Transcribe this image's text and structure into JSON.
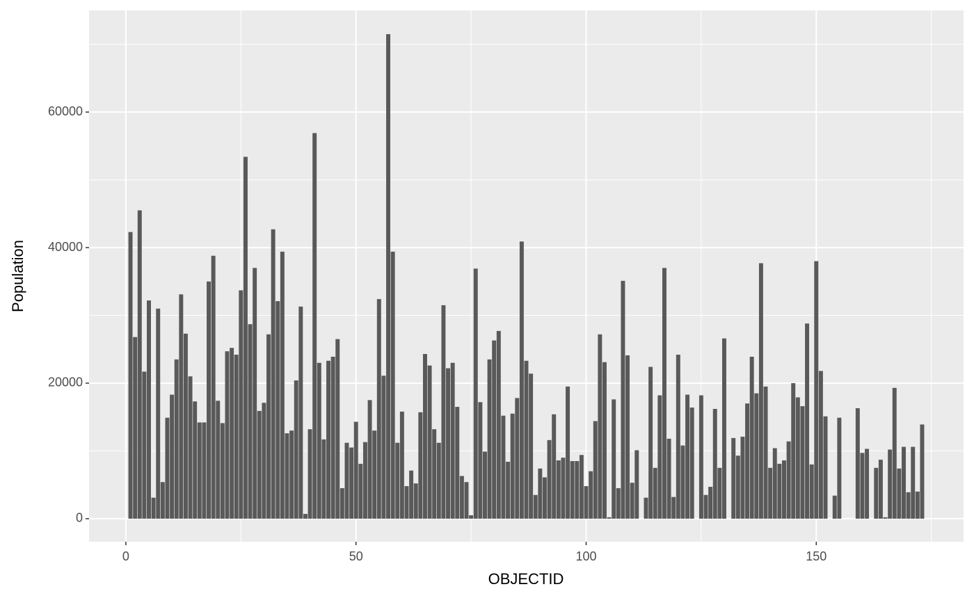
{
  "chart_data": {
    "type": "bar",
    "x_label": "OBJECTID",
    "y_label": "Population",
    "x": [
      1,
      2,
      3,
      4,
      5,
      6,
      7,
      8,
      9,
      10,
      11,
      12,
      13,
      14,
      15,
      16,
      17,
      18,
      19,
      20,
      21,
      22,
      23,
      24,
      25,
      26,
      27,
      28,
      29,
      30,
      31,
      32,
      33,
      34,
      35,
      36,
      37,
      38,
      39,
      40,
      41,
      42,
      43,
      44,
      45,
      46,
      47,
      48,
      49,
      50,
      51,
      52,
      53,
      54,
      55,
      56,
      57,
      58,
      59,
      60,
      61,
      62,
      63,
      64,
      65,
      66,
      67,
      68,
      69,
      70,
      71,
      72,
      73,
      74,
      75,
      76,
      77,
      78,
      79,
      80,
      81,
      82,
      83,
      84,
      85,
      86,
      87,
      88,
      89,
      90,
      91,
      92,
      93,
      94,
      95,
      96,
      97,
      98,
      99,
      100,
      101,
      102,
      103,
      104,
      105,
      106,
      107,
      108,
      109,
      110,
      111,
      112,
      113,
      114,
      115,
      116,
      117,
      118,
      119,
      120,
      121,
      122,
      123,
      124,
      125,
      126,
      127,
      128,
      129,
      130,
      131,
      132,
      133,
      134,
      135,
      136,
      137,
      138,
      139,
      140,
      141,
      142,
      143,
      144,
      145,
      146,
      147,
      148,
      149,
      150,
      151,
      152,
      153,
      154,
      155,
      156,
      157,
      158,
      159,
      160,
      161,
      162,
      163,
      164,
      165,
      166,
      167,
      168,
      169,
      170,
      171,
      172,
      173
    ],
    "values": [
      42300,
      26800,
      45500,
      21700,
      32200,
      3100,
      31000,
      5400,
      14900,
      18300,
      23500,
      33100,
      27300,
      21000,
      17300,
      14200,
      14200,
      35000,
      38800,
      17400,
      14100,
      24700,
      25200,
      24200,
      33700,
      53400,
      28700,
      37000,
      15900,
      17100,
      27200,
      42700,
      32100,
      39400,
      12600,
      13000,
      20400,
      31300,
      700,
      13200,
      56900,
      23000,
      11700,
      23300,
      23900,
      26500,
      4500,
      11200,
      10500,
      14300,
      8100,
      11300,
      17500,
      13000,
      32400,
      21100,
      71500,
      39400,
      11200,
      15800,
      4800,
      7100,
      5200,
      15700,
      24300,
      22600,
      13200,
      11200,
      31500,
      22200,
      23000,
      16500,
      6300,
      5400,
      500,
      36900,
      17200,
      9900,
      23500,
      26300,
      27700,
      15200,
      8400,
      15500,
      17800,
      40900,
      23300,
      21400,
      3500,
      7400,
      6100,
      11600,
      15400,
      8600,
      9000,
      19500,
      8500,
      8500,
      9400,
      4800,
      7000,
      14400,
      27200,
      23100,
      200,
      17600,
      4500,
      35100,
      24100,
      5300,
      10100,
      null,
      3100,
      22400,
      7500,
      18200,
      37000,
      11800,
      3200,
      24200,
      10800,
      18300,
      16400,
      null,
      18200,
      3500,
      4700,
      16200,
      7500,
      26600,
      null,
      11900,
      9300,
      12100,
      17000,
      23900,
      18500,
      37700,
      19500,
      7500,
      10400,
      8100,
      8600,
      11400,
      20000,
      17900,
      16600,
      28800,
      8000,
      38000,
      21800,
      15100,
      null,
      3400,
      14900,
      null,
      null,
      null,
      16300,
      9700,
      10300,
      null,
      7500,
      8700,
      200,
      10200,
      19300,
      7400,
      10600,
      3900,
      10600,
      4000,
      13900
    ],
    "color": "#595959",
    "xlim": [
      -8,
      182
    ],
    "xticks": [
      0,
      50,
      100,
      150
    ],
    "x_minor_breaks": [
      25,
      75,
      125,
      175
    ],
    "ylim": [
      -3400,
      75000
    ],
    "yticks": [
      0,
      20000,
      40000,
      60000
    ],
    "y_minor_breaks": [
      10000,
      30000,
      50000,
      70000
    ],
    "grid": true
  }
}
